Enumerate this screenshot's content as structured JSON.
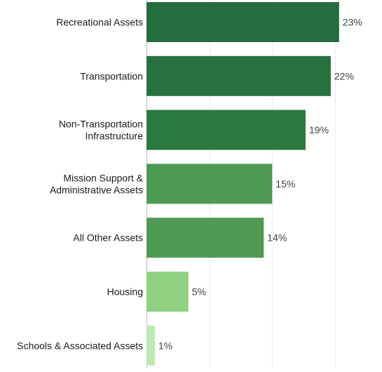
{
  "chart_data": {
    "type": "bar",
    "orientation": "horizontal",
    "categories": [
      [
        "Recreational Assets"
      ],
      [
        "Transportation"
      ],
      [
        "Non-Transportation",
        "Infrastructure"
      ],
      [
        "Mission Support &",
        "Administrative Assets"
      ],
      [
        "All Other Assets"
      ],
      [
        "Housing"
      ],
      [
        "Schools & Associated Assets"
      ]
    ],
    "values": [
      23,
      22,
      19,
      15,
      14,
      5,
      1
    ],
    "value_labels": [
      "23%",
      "22%",
      "19%",
      "15%",
      "14%",
      "5%",
      "1%"
    ],
    "colors": [
      "#256c3f",
      "#28713f",
      "#2b7a3f",
      "#4f9a53",
      "#4f9a53",
      "#8fd181",
      "#bde8b0"
    ],
    "xlim": [
      0,
      25
    ],
    "gridlines": [
      0,
      7.5,
      15,
      22.5
    ],
    "grid": true,
    "legend": "none",
    "title": "",
    "xlabel": "",
    "ylabel": ""
  }
}
